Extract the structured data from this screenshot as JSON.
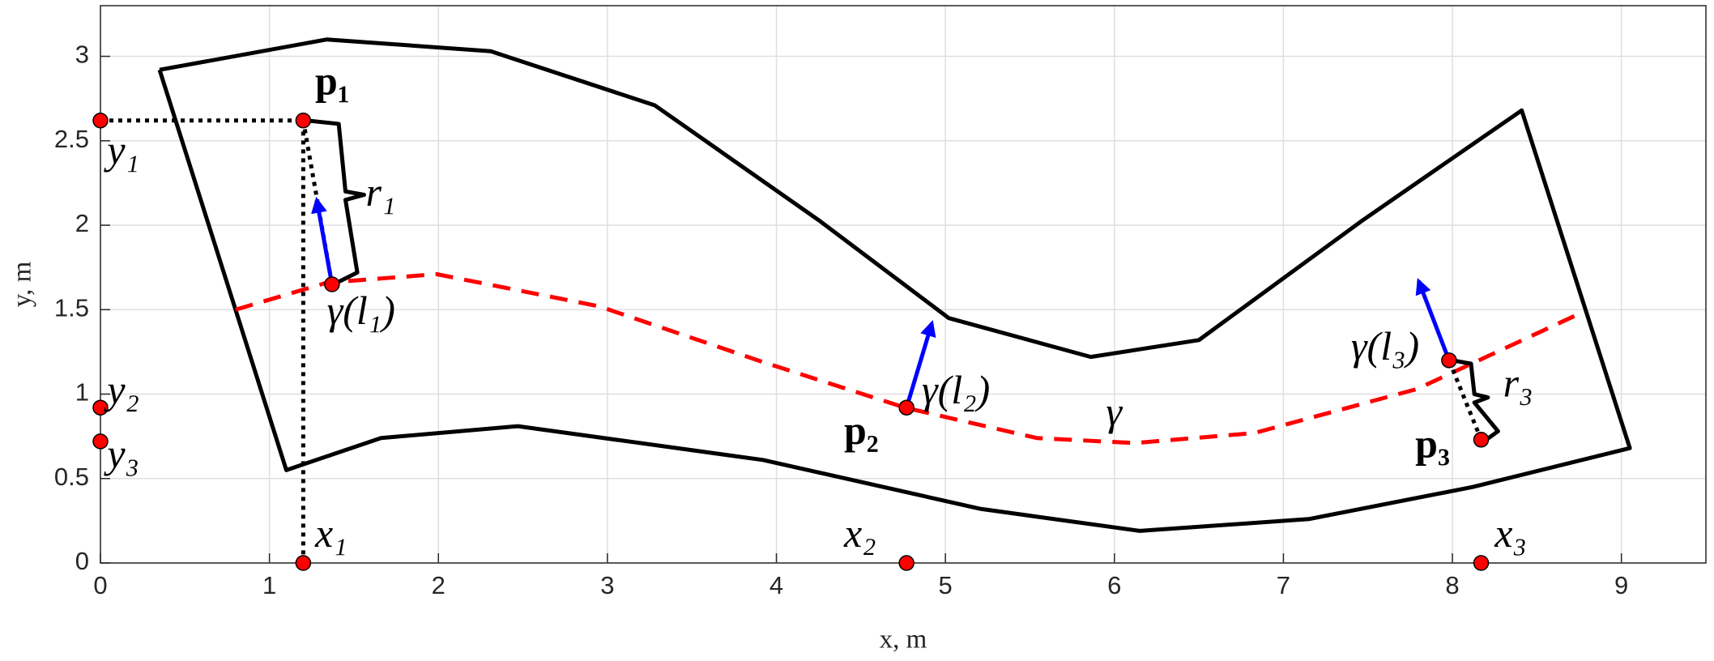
{
  "chart_data": {
    "type": "line",
    "xlabel": "x, m",
    "ylabel": "y, m",
    "xlim": [
      0,
      9.5
    ],
    "ylim": [
      0,
      3.3
    ],
    "xticks": [
      0,
      1,
      2,
      3,
      4,
      5,
      6,
      7,
      8,
      9
    ],
    "yticks": [
      0,
      0.5,
      1,
      1.5,
      2,
      2.5,
      3
    ],
    "grid": true,
    "series": [
      {
        "color": "#000000",
        "style": "solid",
        "x": [
          0.35,
          1.34,
          2.31,
          3.28,
          4.25,
          5.02,
          5.86,
          6.5,
          7.47,
          8.41,
          9.05,
          8.12,
          7.15,
          6.15,
          5.21,
          3.92,
          2.47,
          1.66,
          1.1,
          0.35
        ],
        "y": [
          2.92,
          3.1,
          3.03,
          2.71,
          2.03,
          1.45,
          1.22,
          1.32,
          2.03,
          2.68,
          0.68,
          0.45,
          0.26,
          0.19,
          0.32,
          0.61,
          0.81,
          0.74,
          0.55,
          2.92
        ]
      },
      {
        "color": "#ff0000",
        "style": "dashed",
        "x": [
          0.8,
          1.34,
          1.99,
          2.95,
          3.92,
          4.76,
          5.54,
          6.12,
          6.83,
          7.79,
          8.76
        ],
        "y": [
          1.5,
          1.66,
          1.71,
          1.52,
          1.19,
          0.92,
          0.74,
          0.71,
          0.77,
          1.03,
          1.48
        ]
      },
      {
        "color": "#000000",
        "style": "dotted",
        "x": [
          0,
          1.2,
          1.2
        ],
        "y": [
          2.62,
          2.62,
          0
        ]
      },
      {
        "color": "#000000",
        "style": "dotted",
        "x": [
          1.2,
          1.37
        ],
        "y": [
          2.62,
          1.65
        ]
      },
      {
        "color": "#000000",
        "style": "dotted",
        "x": [
          8.17,
          7.98
        ],
        "y": [
          0.73,
          1.2
        ]
      },
      {
        "color": "#0000ff",
        "style": "arrow",
        "x": [
          1.37,
          1.28
        ],
        "y": [
          1.65,
          2.15
        ]
      },
      {
        "color": "#0000ff",
        "style": "arrow",
        "x": [
          4.77,
          4.92
        ],
        "y": [
          0.92,
          1.42
        ]
      },
      {
        "color": "#0000ff",
        "style": "arrow",
        "x": [
          7.98,
          7.8
        ],
        "y": [
          1.2,
          1.67
        ]
      },
      {
        "color": "#ff0000",
        "style": "markers",
        "x": [
          0,
          1.2,
          1.37,
          0,
          0,
          1.2,
          4.77,
          8.17,
          4.77,
          7.98,
          8.17
        ],
        "y": [
          2.62,
          2.62,
          1.65,
          0.92,
          0.72,
          0,
          0,
          0,
          0.92,
          1.2,
          0.73
        ]
      }
    ],
    "annotations": [
      {
        "text": "p₁",
        "bold": true
      },
      {
        "text": "y₁"
      },
      {
        "text": "r₁"
      },
      {
        "text": "γ(l₁)"
      },
      {
        "text": "y₂"
      },
      {
        "text": "y₃"
      },
      {
        "text": "x₁"
      },
      {
        "text": "x₂"
      },
      {
        "text": "x₃"
      },
      {
        "text": "p₂",
        "bold": true
      },
      {
        "text": "γ(l₂)"
      },
      {
        "text": "γ"
      },
      {
        "text": "γ(l₃)"
      },
      {
        "text": "r₃"
      },
      {
        "text": "p₃",
        "bold": true
      }
    ]
  }
}
